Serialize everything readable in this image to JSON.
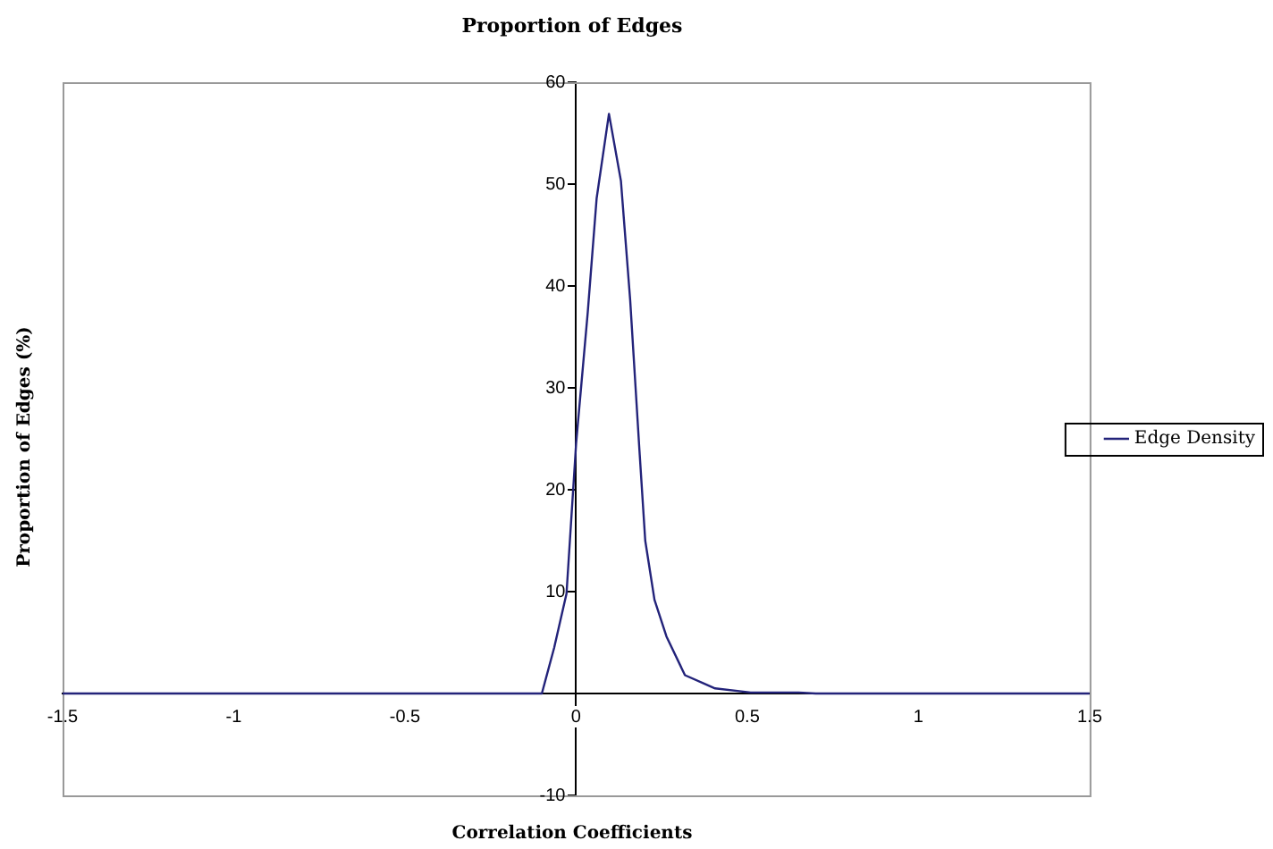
{
  "chart_data": {
    "type": "line",
    "title": "Proportion of Edges",
    "xlabel": "Correlation Coefficients",
    "ylabel": "Proportion of Edges (%)",
    "x": [
      -1.5,
      -0.1,
      -0.064,
      -0.028,
      0,
      0.034,
      0.06,
      0.096,
      0.131,
      0.158,
      0.185,
      0.202,
      0.229,
      0.264,
      0.318,
      0.406,
      0.51,
      0.65,
      0.7,
      1.5
    ],
    "series": [
      {
        "name": "Edge Density",
        "color": "#23237a",
        "values": [
          0,
          0,
          4.5,
          9.8,
          24.5,
          37.4,
          48.6,
          56.9,
          50.3,
          38.6,
          23.9,
          15.0,
          9.2,
          5.6,
          1.8,
          0.5,
          0.1,
          0.1,
          0,
          0
        ]
      }
    ],
    "xlim": [
      -1.5,
      1.5
    ],
    "xticks": [
      -1.5,
      -1,
      -0.5,
      0,
      0.5,
      1,
      1.5
    ],
    "ylim": [
      -10,
      60
    ],
    "yticks": [
      -10,
      {
        "value": 0,
        "label": null
      },
      10,
      20,
      30,
      40,
      50,
      60
    ],
    "grid": false,
    "legend": "right",
    "marker": "none",
    "line_style": "solid"
  }
}
